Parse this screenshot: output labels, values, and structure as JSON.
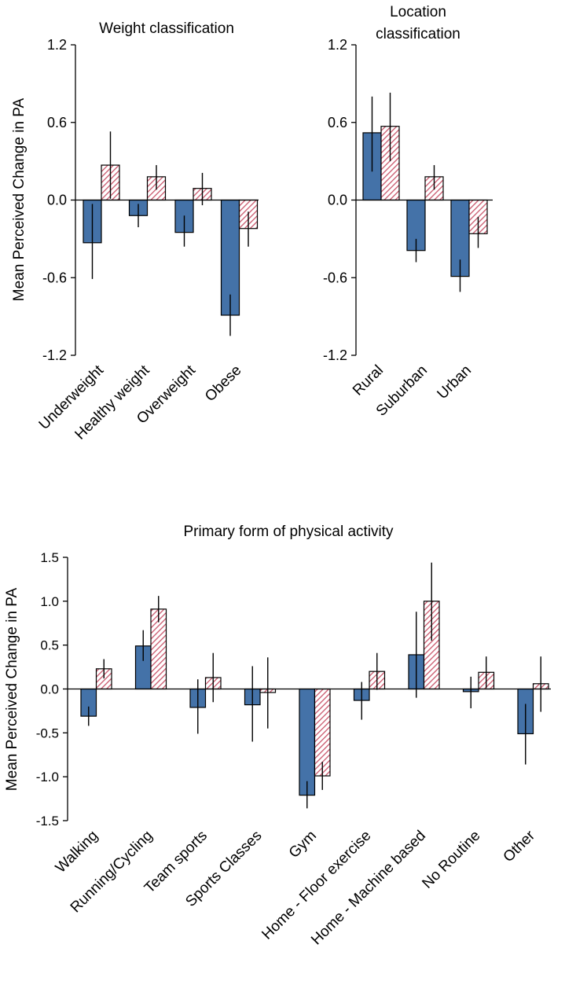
{
  "colors": {
    "series1": "#4472a8",
    "series2_hatch": "#c9566b",
    "axis": "#000000"
  },
  "chart_data": [
    {
      "type": "bar",
      "title": "Weight classification",
      "ylabel": "Mean Perceived Change in PA",
      "categories": [
        "Underweight",
        "Healthy weight",
        "Overweight",
        "Obese"
      ],
      "yticks": [
        "1.2",
        "0.6",
        "0.0",
        "-0.6",
        "-1.2"
      ],
      "ylim": [
        -1.2,
        1.2
      ],
      "series": [
        {
          "values": [
            -0.33,
            -0.12,
            -0.25,
            -0.89
          ],
          "err_low": [
            -0.61,
            -0.21,
            -0.36,
            -1.05
          ],
          "err_high": [
            -0.03,
            -0.03,
            -0.12,
            -0.73
          ],
          "fill": "solid"
        },
        {
          "values": [
            0.27,
            0.18,
            0.09,
            -0.22
          ],
          "err_low": [
            0.01,
            0.08,
            -0.04,
            -0.36
          ],
          "err_high": [
            0.53,
            0.27,
            0.21,
            -0.09
          ],
          "fill": "hatch"
        }
      ]
    },
    {
      "type": "bar",
      "title": "Location classification",
      "title_lines": [
        "Location",
        "classification"
      ],
      "ylabel": "",
      "categories": [
        "Rural",
        "Suburban",
        "Urban"
      ],
      "yticks": [
        "1.2",
        "0.6",
        "0.0",
        "-0.6",
        "-1.2"
      ],
      "ylim": [
        -1.2,
        1.2
      ],
      "series": [
        {
          "values": [
            0.52,
            -0.39,
            -0.59
          ],
          "err_low": [
            0.22,
            -0.48,
            -0.71
          ],
          "err_high": [
            0.8,
            -0.3,
            -0.46
          ],
          "fill": "solid"
        },
        {
          "values": [
            0.57,
            0.18,
            -0.26
          ],
          "err_low": [
            0.3,
            0.08,
            -0.37
          ],
          "err_high": [
            0.83,
            0.27,
            -0.13
          ],
          "fill": "hatch"
        }
      ]
    },
    {
      "type": "bar",
      "title": "Primary form of physical activity",
      "ylabel": "Mean Perceived Change in PA",
      "categories": [
        "Walking",
        "Running/Cycling",
        "Team sports",
        "Sports Classes",
        "Gym",
        "Home - Floor exercise",
        "Home - Machine based",
        "No Routine",
        "Other"
      ],
      "yticks": [
        "1.5",
        "1.0",
        "0.5",
        "0.0",
        "-0.5",
        "-1.0",
        "-1.5"
      ],
      "ylim": [
        -1.5,
        1.5
      ],
      "series": [
        {
          "values": [
            -0.31,
            0.49,
            -0.21,
            -0.18,
            -1.21,
            -0.13,
            0.39,
            -0.03,
            -0.51
          ],
          "err_low": [
            -0.42,
            0.32,
            -0.51,
            -0.6,
            -1.36,
            -0.35,
            -0.1,
            -0.22,
            -0.86
          ],
          "err_high": [
            -0.2,
            0.67,
            0.11,
            0.26,
            -1.05,
            0.08,
            0.88,
            0.14,
            -0.17
          ],
          "fill": "solid"
        },
        {
          "values": [
            0.23,
            0.91,
            0.13,
            -0.04,
            -0.99,
            0.2,
            1.0,
            0.19,
            0.06
          ],
          "err_low": [
            0.12,
            0.76,
            -0.15,
            -0.45,
            -1.15,
            -0.01,
            0.55,
            0.01,
            -0.26
          ],
          "err_high": [
            0.34,
            1.06,
            0.41,
            0.36,
            -0.83,
            0.41,
            1.44,
            0.37,
            0.37
          ],
          "fill": "hatch"
        }
      ]
    }
  ]
}
